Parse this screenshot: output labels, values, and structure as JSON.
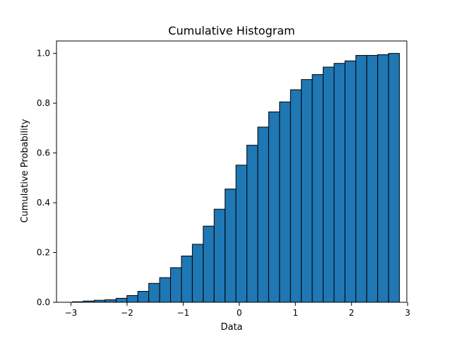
{
  "chart_data": {
    "type": "bar",
    "title": "Cumulative Histogram",
    "xlabel": "Data",
    "ylabel": "Cumulative Probability",
    "xlim": [
      -3.257,
      2.985
    ],
    "ylim": [
      0,
      1.05
    ],
    "grid": false,
    "bar_color": "#1f77b4",
    "edge_color": "#000000",
    "bin_start": -2.973,
    "bin_width": 0.19425,
    "values": [
      0.002,
      0.005,
      0.008,
      0.01,
      0.016,
      0.027,
      0.044,
      0.076,
      0.099,
      0.139,
      0.186,
      0.233,
      0.306,
      0.374,
      0.455,
      0.551,
      0.631,
      0.704,
      0.765,
      0.805,
      0.854,
      0.895,
      0.915,
      0.945,
      0.96,
      0.97,
      0.992,
      0.992,
      0.995,
      1.0
    ],
    "xticks": [
      -3,
      -2,
      -1,
      0,
      1,
      2,
      3
    ],
    "xtick_labels": [
      "−3",
      "−2",
      "−1",
      "0",
      "1",
      "2",
      "3"
    ],
    "yticks": [
      0,
      0.2,
      0.4,
      0.6,
      0.8,
      1.0
    ],
    "ytick_labels": [
      "0.0",
      "0.2",
      "0.4",
      "0.6",
      "0.8",
      "1.0"
    ]
  }
}
